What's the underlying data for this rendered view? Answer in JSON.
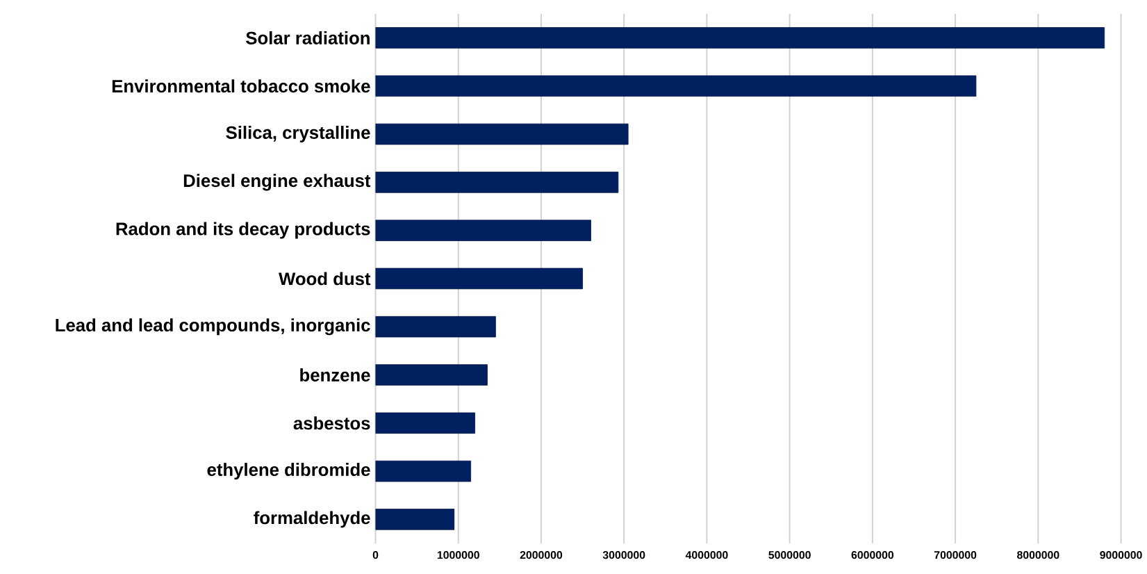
{
  "chart_data": {
    "type": "bar",
    "orientation": "horizontal",
    "categories": [
      "Solar radiation",
      "Environmental tobacco smoke",
      "Silica, crystalline",
      "Diesel engine exhaust",
      "Radon and its decay products",
      "Wood dust",
      "Lead and lead compounds, inorganic",
      "benzene",
      "asbestos",
      "ethylene dibromide",
      "formaldehyde"
    ],
    "values": [
      8800000,
      7250000,
      3050000,
      2930000,
      2600000,
      2500000,
      1450000,
      1350000,
      1200000,
      1150000,
      950000
    ],
    "color": "#002060",
    "xlim": [
      0,
      9000000
    ],
    "xticks": [
      0,
      1000000,
      2000000,
      3000000,
      4000000,
      5000000,
      6000000,
      7000000,
      8000000,
      9000000
    ],
    "grid": "x"
  }
}
